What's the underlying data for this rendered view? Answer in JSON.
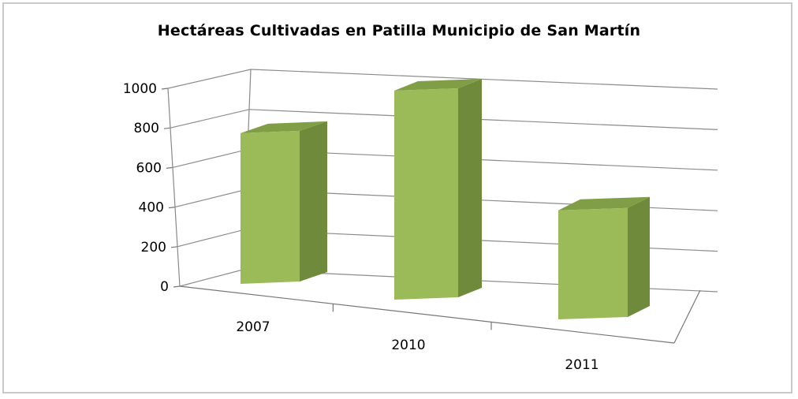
{
  "chart_data": {
    "type": "bar",
    "title": "Hectáreas Cultivadas en Patilla Municipio de San Martín",
    "categories": [
      "2007",
      "2010",
      "2011"
    ],
    "values": [
      700,
      950,
      480
    ],
    "ylim": [
      0,
      1000
    ],
    "yticks": [
      "0",
      "200",
      "400",
      "600",
      "800",
      "1000"
    ],
    "grid": true,
    "legend": "none",
    "colors": {
      "bar_front": "#9BBB59",
      "bar_side": "#6E8A3A",
      "bar_top": "#7F9E45",
      "grid": "#8c8c8c"
    }
  }
}
